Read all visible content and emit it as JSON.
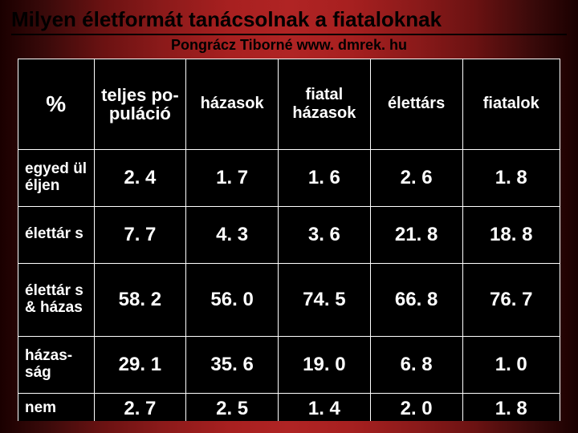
{
  "title": "Milyen életformát tanácsolnak a fiataloknak",
  "subtitle": "Pongrácz Tiborné www. dmrek. hu",
  "table": {
    "type": "table",
    "background_color": "#000000",
    "border_color": "#ffffff",
    "text_color": "#ffffff",
    "header_fontsize": 20,
    "value_fontsize": 24,
    "rowlabel_fontsize": 19,
    "columns": [
      "%",
      "teljes po-puláció",
      "házasok",
      "fiatal házasok",
      "élettárs",
      "fiatalok"
    ],
    "rows": [
      {
        "label": "egyed ül éljen",
        "values": [
          "2. 4",
          "1. 7",
          "1. 6",
          "2. 6",
          "1. 8"
        ]
      },
      {
        "label": "élettár s",
        "values": [
          "7. 7",
          "4. 3",
          "3. 6",
          "21. 8",
          "18. 8"
        ]
      },
      {
        "label": "élettár s & házas",
        "values": [
          "58. 2",
          "56. 0",
          "74. 5",
          "66. 8",
          "76. 7"
        ]
      },
      {
        "label": "házas-ság",
        "values": [
          "29. 1",
          "35. 6",
          "19. 0",
          "6. 8",
          "1. 0"
        ]
      },
      {
        "label": "nem",
        "values": [
          "2. 7",
          "2. 5",
          "1. 4",
          "2. 0",
          "1. 8"
        ]
      }
    ]
  },
  "style": {
    "slide_bg_gradient": [
      "#1a0000",
      "#6b1212",
      "#b02424",
      "#6b1212",
      "#1a0000"
    ],
    "title_color": "#000000",
    "title_fontsize": 26,
    "subtitle_fontsize": 18
  }
}
